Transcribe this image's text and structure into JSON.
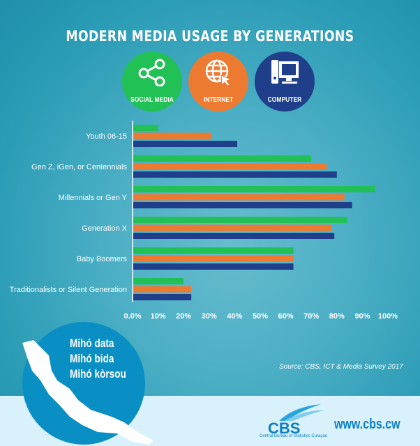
{
  "title": "MODERN MEDIA USAGE BY GENERATIONS",
  "icons": [
    {
      "label": "SOCIAL MEDIA",
      "icon": "share-icon",
      "color": "#22c155"
    },
    {
      "label": "INTERNET",
      "icon": "globe-cursor-icon",
      "color": "#ec7b31"
    },
    {
      "label": "COMPUTER",
      "icon": "computer-icon",
      "color": "#1f3f8a"
    }
  ],
  "chart_data": {
    "type": "bar",
    "orientation": "horizontal",
    "title": "MODERN MEDIA USAGE BY GENERATIONS",
    "categories": [
      "Youth 06-15",
      "Gen Z, iGen, or Centennials",
      "Millennials or Gen Y",
      "Generation X",
      "Baby Boomers",
      "Traditionalists or Silent Generation"
    ],
    "series": [
      {
        "name": "SOCIAL MEDIA",
        "color": "#22c155",
        "values": [
          10,
          70,
          95,
          84,
          63,
          20
        ]
      },
      {
        "name": "INTERNET",
        "color": "#ec7b31",
        "values": [
          31,
          76,
          83,
          78,
          63,
          23
        ]
      },
      {
        "name": "COMPUTER",
        "color": "#1f3f8a",
        "values": [
          41,
          80,
          86,
          79,
          63,
          23
        ]
      }
    ],
    "xlim": [
      0,
      100
    ],
    "xticks": [
      "0.0%",
      "10%",
      "20%",
      "30%",
      "40%",
      "50%",
      "60%",
      "70%",
      "80%",
      "90%",
      "100%"
    ],
    "grid": false,
    "legend": "icons-top"
  },
  "slogan": [
    "Mihó data",
    "Mihó bida",
    "Mihó kòrsou"
  ],
  "source": "Source: CBS, ICT & Media Survey 2017",
  "logo": {
    "text": "CBS",
    "subtitle": "Central Bureau of Statistics Curaçao"
  },
  "url": "www.cbs.cw"
}
